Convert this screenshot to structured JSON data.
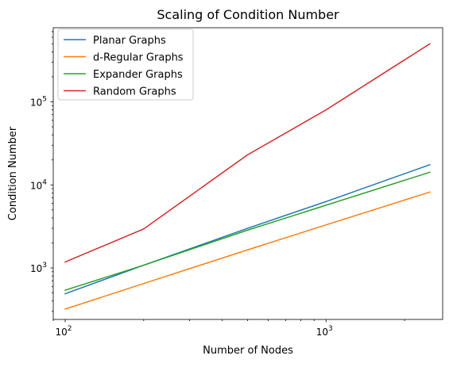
{
  "chart_data": {
    "type": "line",
    "title": "Scaling of Condition Number",
    "xlabel": "Number of Nodes",
    "ylabel": "Condition Number",
    "xscale": "log",
    "yscale": "log",
    "xlim": [
      90,
      2800
    ],
    "ylim": [
      240,
      780000
    ],
    "grid": false,
    "legend_position": "top-left",
    "x": [
      100,
      200,
      500,
      1000,
      2500
    ],
    "x_ticks": [
      {
        "value": 100,
        "base": "10",
        "exp": "2"
      },
      {
        "value": 1000,
        "base": "10",
        "exp": "3"
      }
    ],
    "y_ticks": [
      {
        "value": 1000,
        "base": "10",
        "exp": "3"
      },
      {
        "value": 10000,
        "base": "10",
        "exp": "4"
      },
      {
        "value": 100000,
        "base": "10",
        "exp": "5"
      }
    ],
    "series": [
      {
        "name": "Planar Graphs",
        "color": "#1f77b4",
        "values": [
          490,
          1080,
          3000,
          6300,
          17500
        ]
      },
      {
        "name": "d-Regular Graphs",
        "color": "#ff7f0e",
        "values": [
          320,
          650,
          1650,
          3300,
          8200
        ]
      },
      {
        "name": "Expander Graphs",
        "color": "#2ca02c",
        "values": [
          540,
          1080,
          2850,
          5700,
          14200
        ]
      },
      {
        "name": "Random Graphs",
        "color": "#d62728",
        "values": [
          1180,
          2950,
          23000,
          80000,
          500000
        ]
      }
    ]
  }
}
